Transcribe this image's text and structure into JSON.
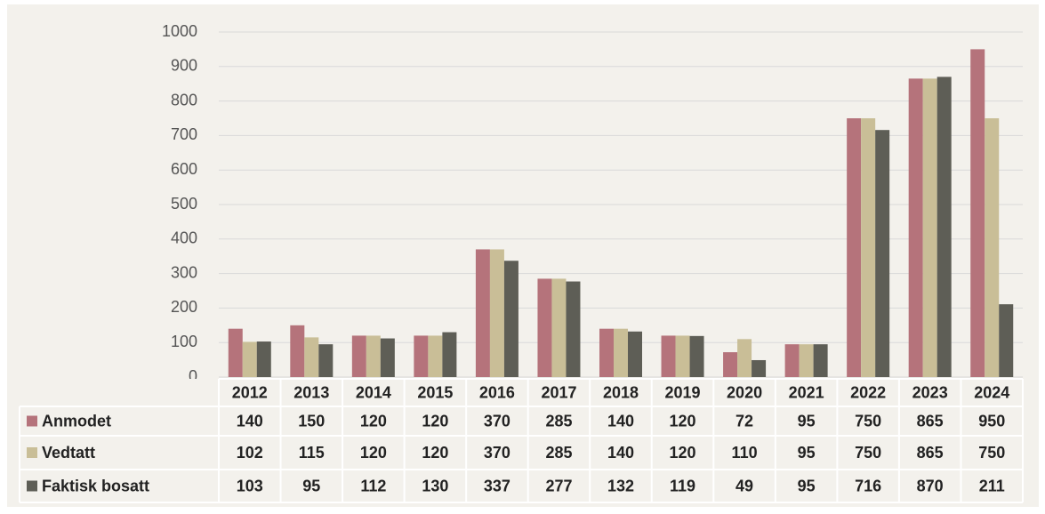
{
  "chart_data": {
    "type": "bar",
    "categories": [
      "2012",
      "2013",
      "2014",
      "2015",
      "2016",
      "2017",
      "2018",
      "2019",
      "2020",
      "2021",
      "2022",
      "2023",
      "2024"
    ],
    "series": [
      {
        "name": "Anmodet",
        "color": "#b5737b",
        "values": [
          140,
          150,
          120,
          120,
          370,
          285,
          140,
          120,
          72,
          95,
          750,
          865,
          950
        ]
      },
      {
        "name": "Vedtatt",
        "color": "#c9be97",
        "values": [
          102,
          115,
          120,
          120,
          370,
          285,
          140,
          120,
          110,
          95,
          750,
          865,
          750
        ]
      },
      {
        "name": "Faktisk bosatt",
        "color": "#5e5e56",
        "values": [
          103,
          95,
          112,
          130,
          337,
          277,
          132,
          119,
          49,
          95,
          716,
          870,
          211
        ]
      }
    ],
    "ylim": [
      0,
      1000
    ],
    "yticks": [
      0,
      100,
      200,
      300,
      400,
      500,
      600,
      700,
      800,
      900,
      1000
    ],
    "grid": true
  }
}
